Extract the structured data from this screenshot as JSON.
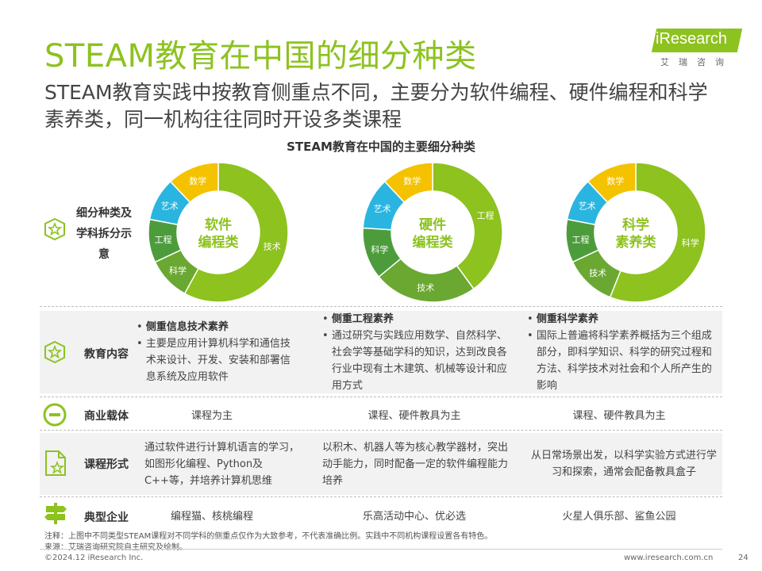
{
  "header": {
    "title": "STEAM教育在中国的细分种类",
    "subtitle": "STEAM教育实践中按教育侧重点不同，主要分为软件编程、硬件编程和科学素养类，同一机构往往同时开设多类课程"
  },
  "logo": {
    "text": "iResearch",
    "cn": "艾瑞咨询"
  },
  "diagram": {
    "title": "STEAM教育在中国的主要细分种类",
    "row_label": "细分种类及学科拆分示意",
    "donuts": [
      {
        "center": "软件编程类",
        "center_lines": [
          "软件",
          "编程类"
        ],
        "segments": [
          {
            "label": "技术",
            "share": 0.58,
            "color": "#8dc21f"
          },
          {
            "label": "科学",
            "share": 0.1,
            "color": "#6aa832"
          },
          {
            "label": "工程",
            "share": 0.1,
            "color": "#4d9c3c"
          },
          {
            "label": "艺术",
            "share": 0.1,
            "color": "#2ab5e0"
          },
          {
            "label": "数学",
            "share": 0.12,
            "color": "#f5c200"
          }
        ]
      },
      {
        "center": "硬件编程类",
        "center_lines": [
          "硬件",
          "编程类"
        ],
        "segments": [
          {
            "label": "工程",
            "share": 0.4,
            "color": "#8dc21f"
          },
          {
            "label": "技术",
            "share": 0.24,
            "color": "#6aa832"
          },
          {
            "label": "科学",
            "share": 0.12,
            "color": "#4d9c3c"
          },
          {
            "label": "艺术",
            "share": 0.12,
            "color": "#2ab5e0"
          },
          {
            "label": "数学",
            "share": 0.12,
            "color": "#f5c200"
          }
        ]
      },
      {
        "center": "科学素养类",
        "center_lines": [
          "科学",
          "素养类"
        ],
        "segments": [
          {
            "label": "科学",
            "share": 0.56,
            "color": "#8dc21f"
          },
          {
            "label": "技术",
            "share": 0.12,
            "color": "#6aa832"
          },
          {
            "label": "工程",
            "share": 0.1,
            "color": "#4d9c3c"
          },
          {
            "label": "艺术",
            "share": 0.1,
            "color": "#2ab5e0"
          },
          {
            "label": "数学",
            "share": 0.12,
            "color": "#f5c200"
          }
        ]
      }
    ]
  },
  "rows": {
    "content": {
      "label": "教育内容",
      "col1": {
        "head": "侧重信息技术素养",
        "body": "主要是应用计算机科学和通信技术来设计、开发、安装和部署信息系统及应用软件"
      },
      "col2": {
        "head": "侧重工程素养",
        "body": "通过研究与实践应用数学、自然科学、社会学等基础学科的知识，达到改良各行业中现有土木建筑、机械等设计和应用方式"
      },
      "col3": {
        "head": "侧重科学素养",
        "body": "国际上普遍将科学素养概括为三个组成部分，即科学知识、科学的研究过程和方法、科学技术对社会和个人所产生的影响"
      }
    },
    "carrier": {
      "label": "商业载体",
      "col1": "课程为主",
      "col2": "课程、硬件教具为主",
      "col3": "课程、硬件教具为主"
    },
    "format": {
      "label": "课程形式",
      "col1": "通过软件进行计算机语言的学习，如图形化编程、Python及C++等，并培养计算机思维",
      "col2": "以积木、机器人等为核心教学器材，突出动手能力，同时配备一定的软件编程能力培养",
      "col3": "从日常场景出发，以科学实验方式进行学习和探索，通常会配备教具盒子"
    },
    "companies": {
      "label": "典型企业",
      "col1": "编程猫、核桃编程",
      "col2": "乐高活动中心、优必选",
      "col3": "火星人俱乐部、鲨鱼公园"
    }
  },
  "notes": {
    "note": "注释：上图中不同类型STEAM课程对不同学科的侧重点仅作为大致参考，不代表准确比例。实践中不同机构课程设置各有特色。",
    "source": "来源：艾瑞咨询研究院自主研究及绘制。"
  },
  "footer": {
    "copyright": "©2024.12 iResearch Inc.",
    "url": "www.iresearch.com.cn",
    "page": "24"
  },
  "colors": {
    "brand_green": "#8dc21f",
    "light_green": "#6aa832",
    "dark_green": "#4d9c3c",
    "blue": "#2ab5e0",
    "yellow": "#f5c200"
  }
}
